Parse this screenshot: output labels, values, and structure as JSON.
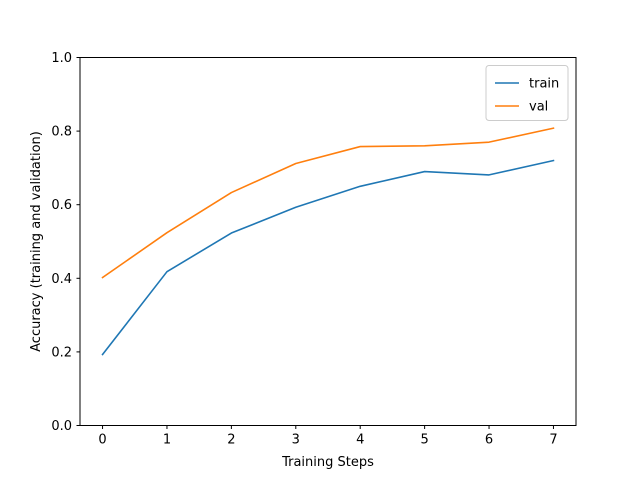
{
  "chart_data": {
    "type": "line",
    "title": "",
    "xlabel": "Training Steps",
    "ylabel": "Accuracy (training and validation)",
    "x": [
      0,
      1,
      2,
      3,
      4,
      5,
      6,
      7
    ],
    "xticks": [
      "0",
      "1",
      "2",
      "3",
      "4",
      "5",
      "6",
      "7"
    ],
    "yticks": [
      "0.0",
      "0.2",
      "0.4",
      "0.6",
      "0.8",
      "1.0"
    ],
    "xlim": [
      -0.35,
      7.35
    ],
    "ylim": [
      0.0,
      1.0
    ],
    "grid": false,
    "legend": "top-right",
    "series": [
      {
        "name": "train",
        "color": "#1f77b4",
        "values": [
          0.193,
          0.418,
          0.523,
          0.593,
          0.65,
          0.69,
          0.681,
          0.72
        ]
      },
      {
        "name": "val",
        "color": "#ff7f0e",
        "values": [
          0.402,
          0.524,
          0.633,
          0.712,
          0.758,
          0.76,
          0.77,
          0.808
        ]
      }
    ]
  }
}
